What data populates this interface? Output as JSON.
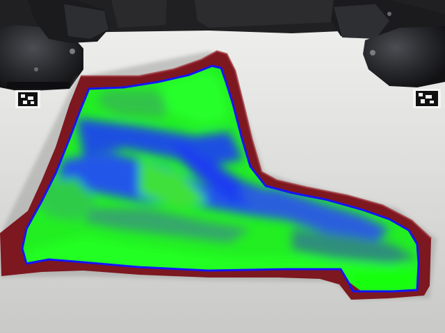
{
  "scene": {
    "description_free": true,
    "colors": {
      "table": "#dcdcda",
      "background_dark": "#1c1c1e",
      "robot_body": "#202124",
      "robot_highlight": "#55585e",
      "cloth_border": "#8a1a22",
      "heatmap_high": "#1aff1a",
      "heatmap_low": "#1a3cff",
      "contour": "#1010ff",
      "marker_black": "#111111",
      "marker_white": "#f4f4f4"
    },
    "icons": {
      "robot_left": "robot-arm-icon",
      "robot_right": "robot-arm-icon",
      "marker_left": "fiducial-marker-icon",
      "marker_right": "fiducial-marker-icon"
    }
  }
}
